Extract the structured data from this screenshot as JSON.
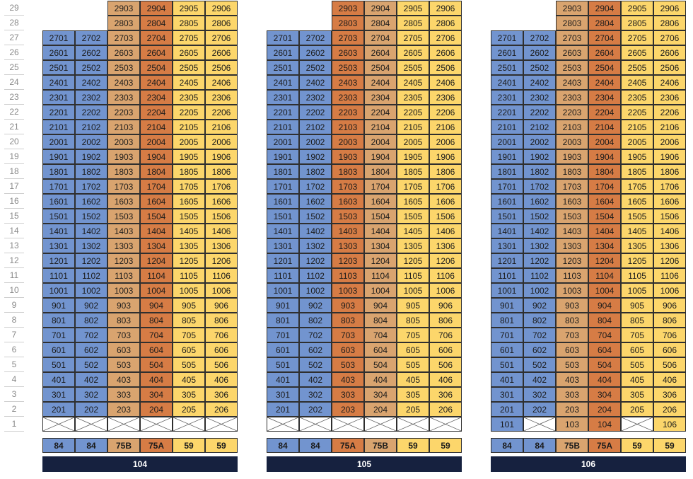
{
  "floors": [
    "29",
    "28",
    "27",
    "26",
    "25",
    "24",
    "23",
    "22",
    "21",
    "20",
    "19",
    "18",
    "17",
    "16",
    "15",
    "14",
    "13",
    "12",
    "11",
    "10",
    "9",
    "8",
    "7",
    "6",
    "5",
    "4",
    "3",
    "2",
    "1"
  ],
  "colors": {
    "blue": "#7294cf",
    "tan": "#d9a46f",
    "orange": "#d67c45",
    "yellow": "#fcd66b",
    "empty": "#ffffff",
    "border": "#2f2f2f",
    "label_bar": "#16213f"
  },
  "buildings": [
    {
      "name": "104",
      "column_types": [
        "84",
        "84",
        "75B",
        "75A",
        "59",
        "59"
      ],
      "column_colors": [
        "blue",
        "blue",
        "tan",
        "orange",
        "yellow",
        "yellow"
      ],
      "max_floor_per_column": [
        27,
        27,
        29,
        29,
        29,
        29
      ],
      "first_floor": [
        "x",
        "x",
        "x",
        "x",
        "x",
        "x"
      ]
    },
    {
      "name": "105",
      "column_types": [
        "84",
        "84",
        "75A",
        "75B",
        "59",
        "59"
      ],
      "column_colors": [
        "blue",
        "blue",
        "orange",
        "tan",
        "yellow",
        "yellow"
      ],
      "max_floor_per_column": [
        27,
        27,
        29,
        29,
        29,
        29
      ],
      "first_floor": [
        "x",
        "x",
        "x",
        "x",
        "x",
        "x"
      ]
    },
    {
      "name": "106",
      "column_types": [
        "84",
        "84",
        "75B",
        "75A",
        "59",
        "59"
      ],
      "column_colors": [
        "blue",
        "blue",
        "tan",
        "orange",
        "yellow",
        "yellow"
      ],
      "max_floor_per_column": [
        27,
        27,
        29,
        29,
        29,
        29
      ],
      "first_floor": [
        "101",
        "x",
        "103",
        "104",
        "x",
        "106"
      ]
    }
  ]
}
